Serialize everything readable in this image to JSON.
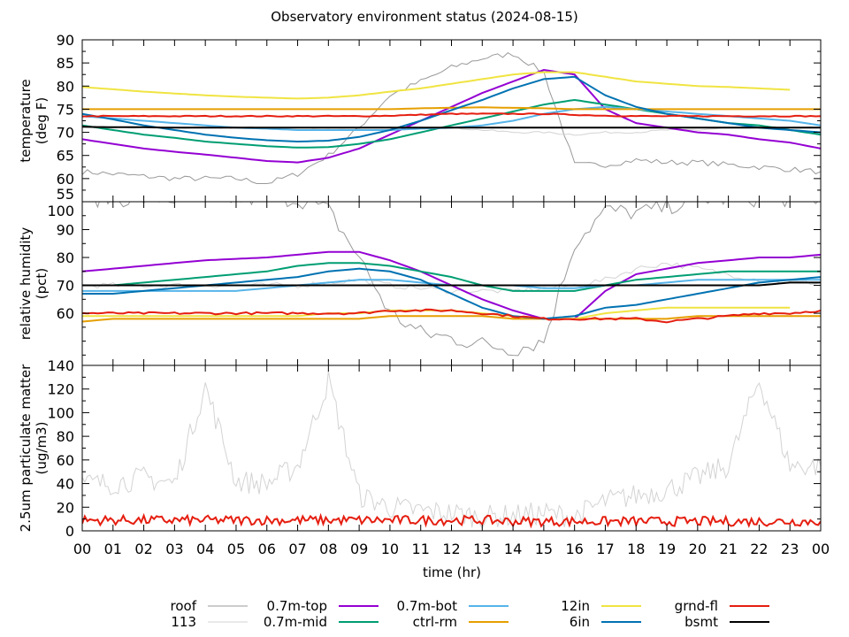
{
  "title": "Observatory environment status (2024-08-15)",
  "xlabel": "time (hr)",
  "x_ticks": [
    "00",
    "01",
    "02",
    "03",
    "04",
    "05",
    "06",
    "07",
    "08",
    "09",
    "10",
    "11",
    "12",
    "13",
    "14",
    "15",
    "16",
    "17",
    "18",
    "19",
    "20",
    "21",
    "22",
    "23",
    "00"
  ],
  "colors": {
    "roof": "#999999",
    "113": "#d3d3d3",
    "0.7m-top": "#9400d3",
    "0.7m-mid": "#009e73",
    "0.7m-bot": "#56b4e9",
    "ctrl-rm": "#e69f00",
    "12in": "#f0e442",
    "6in": "#0072b2",
    "grnd-fl": "#e51e10",
    "bsmt": "#000000"
  },
  "legend": [
    [
      "roof",
      "113"
    ],
    [
      "0.7m-top",
      "0.7m-mid"
    ],
    [
      "0.7m-bot",
      "ctrl-rm"
    ],
    [
      "12in",
      "6in"
    ],
    [
      "grnd-fl",
      "bsmt"
    ]
  ],
  "chart_data": [
    {
      "type": "line",
      "ylabel": [
        "temperature",
        "(deg F)"
      ],
      "ylim": [
        55,
        90
      ],
      "y_ticks": [
        55,
        60,
        65,
        70,
        75,
        80,
        85,
        90
      ],
      "y_tick_step_minor": 2.5,
      "x": "hourly 0-24",
      "series": [
        {
          "name": "roof",
          "values": [
            61.5,
            61,
            60.5,
            60,
            60,
            60,
            59,
            61,
            65,
            71,
            78,
            81,
            84,
            86,
            87,
            83,
            63,
            63,
            64,
            63.5,
            63.5,
            63,
            62.5,
            62,
            61.5
          ]
        },
        {
          "name": "113",
          "values": [
            71,
            71,
            71,
            71,
            71,
            71,
            71,
            71,
            71,
            71,
            71,
            71,
            71,
            70.5,
            70,
            70,
            69.5,
            70,
            70,
            70.5,
            70.5,
            71,
            71,
            71,
            71
          ]
        },
        {
          "name": "0.7m-top",
          "values": [
            68.5,
            67.5,
            66.5,
            65.8,
            65.2,
            64.5,
            63.8,
            63.5,
            64.5,
            66.5,
            69.5,
            72.5,
            75.5,
            78.5,
            81,
            83.5,
            82.5,
            75,
            72,
            71,
            70,
            69.5,
            68.5,
            67.8,
            66.5
          ]
        },
        {
          "name": "0.7m-mid",
          "values": [
            71.5,
            70.5,
            69.5,
            68.8,
            68,
            67.5,
            67,
            66.7,
            66.8,
            67.5,
            68.5,
            70,
            71.5,
            73,
            74.5,
            76,
            77,
            76,
            75,
            74,
            73,
            72,
            71.5,
            70.5,
            69.5
          ]
        },
        {
          "name": "0.7m-bot",
          "values": [
            73.5,
            73,
            72.5,
            72,
            71.5,
            71,
            70.8,
            70.5,
            70.5,
            70.5,
            70.5,
            70.8,
            71,
            71.5,
            72.5,
            74,
            75,
            75.5,
            75,
            74.5,
            74,
            73.5,
            73,
            72.5,
            71.5
          ]
        },
        {
          "name": "ctrl-rm",
          "values": [
            75,
            75,
            75,
            75,
            75,
            75,
            75,
            75,
            75,
            75,
            75,
            75.2,
            75.3,
            75.4,
            75.3,
            75.2,
            75,
            75,
            75,
            75,
            75,
            75,
            75,
            75,
            75
          ]
        },
        {
          "name": "12in",
          "values": [
            79.8,
            79.3,
            78.8,
            78.4,
            78,
            77.7,
            77.5,
            77.3,
            77.5,
            78,
            78.8,
            79.5,
            80.5,
            81.5,
            82.5,
            83,
            83,
            82,
            81,
            80.5,
            80,
            79.8,
            79.5,
            79.2,
            null
          ]
        },
        {
          "name": "6in",
          "values": [
            74,
            72.8,
            71.5,
            70.5,
            69.5,
            68.8,
            68.3,
            68,
            68.2,
            69,
            70.5,
            72.5,
            74.8,
            77,
            79.5,
            81.5,
            82,
            78,
            75.5,
            74,
            73,
            72,
            71,
            70.5,
            70
          ]
        },
        {
          "name": "grnd-fl",
          "values": [
            73.5,
            73.5,
            73.5,
            73.5,
            73.5,
            73.5,
            73.5,
            73.5,
            73.5,
            73.5,
            73.6,
            73.8,
            74,
            74,
            74,
            74,
            73.8,
            73.6,
            73.5,
            73.5,
            73.5,
            73.5,
            73.5,
            73.5,
            73.5
          ]
        },
        {
          "name": "bsmt",
          "values": [
            71.2,
            71.1,
            71.1,
            71,
            71,
            71,
            71,
            71,
            71,
            71,
            71,
            71,
            71,
            71,
            71,
            71,
            71,
            71,
            71,
            71,
            71,
            71,
            71,
            71,
            71
          ]
        }
      ]
    },
    {
      "type": "line",
      "ylabel": [
        "relative humidity",
        "(pct)"
      ],
      "ylim": [
        41.3,
        100
      ],
      "y_ticks": [
        60,
        70,
        80,
        90,
        100
      ],
      "y_tick_step_minor": 5,
      "x": "hourly 0-24",
      "series": [
        {
          "name": "roof",
          "values": [
            101,
            101,
            101,
            101,
            101,
            101,
            101,
            101,
            97,
            80,
            60,
            53,
            51,
            49,
            47,
            50,
            85,
            97,
            96,
            98,
            101,
            101,
            101,
            101,
            101
          ]
        },
        {
          "name": "113",
          "values": [
            70,
            70,
            70,
            70,
            70,
            70,
            70,
            70,
            71,
            72,
            70,
            69,
            68,
            68,
            68,
            69,
            70,
            72,
            76,
            78,
            76,
            74,
            72,
            71,
            71
          ]
        },
        {
          "name": "0.7m-top",
          "values": [
            75,
            76,
            77,
            78,
            79,
            79.5,
            80,
            81,
            82,
            82,
            79,
            75,
            70,
            65,
            61,
            58,
            58,
            68,
            74,
            76,
            78,
            79,
            80,
            80,
            81
          ]
        },
        {
          "name": "0.7m-mid",
          "values": [
            70,
            70,
            71,
            72,
            73,
            74,
            75,
            77,
            78,
            78,
            77,
            75,
            73,
            70,
            68,
            68,
            68,
            70,
            72,
            73,
            74,
            75,
            75,
            75,
            75
          ]
        },
        {
          "name": "0.7m-bot",
          "values": [
            68,
            68,
            68,
            68,
            68,
            68,
            69,
            70,
            71,
            72,
            72,
            71,
            70,
            70,
            70,
            69,
            69,
            70,
            70,
            71,
            72,
            72,
            72,
            72,
            72
          ]
        },
        {
          "name": "ctrl-rm",
          "values": [
            57,
            58,
            58,
            58,
            58,
            58,
            58,
            58,
            58,
            58,
            59,
            59,
            59,
            59,
            58,
            58,
            58,
            58,
            58,
            58,
            59,
            59,
            59,
            59,
            59
          ]
        },
        {
          "name": "12in",
          "values": [
            59,
            59,
            59,
            59,
            59,
            59,
            59,
            59,
            60,
            60,
            61,
            61,
            61,
            60,
            59,
            58,
            58,
            60,
            61,
            62,
            62,
            62,
            62,
            62,
            null
          ]
        },
        {
          "name": "6in",
          "values": [
            67,
            67,
            68,
            69,
            70,
            71,
            72,
            73,
            75,
            76,
            75,
            72,
            67,
            62,
            59,
            58,
            59,
            62,
            63,
            65,
            67,
            69,
            71,
            72,
            73
          ]
        },
        {
          "name": "grnd-fl",
          "values": [
            60,
            60,
            60,
            60,
            60,
            60,
            60,
            60,
            60,
            60,
            61,
            61,
            61,
            60,
            59,
            58,
            58,
            58,
            58,
            57,
            58,
            59,
            60,
            60,
            61
          ]
        },
        {
          "name": "bsmt",
          "values": [
            70,
            70,
            70,
            70,
            70,
            70,
            70,
            70,
            70,
            70,
            70,
            70,
            70,
            70,
            70,
            70,
            70,
            70,
            70,
            70,
            70,
            70,
            70,
            71,
            71
          ]
        }
      ]
    },
    {
      "type": "line",
      "ylabel": [
        "2.5um particulate matter",
        "(ug/m3)"
      ],
      "ylim": [
        0,
        140
      ],
      "y_ticks": [
        0,
        20,
        40,
        60,
        80,
        100,
        120,
        140
      ],
      "y_tick_step_minor": 10,
      "x": "hourly 0-24",
      "series": [
        {
          "name": "113",
          "values": [
            40,
            40,
            45,
            40,
            122,
            42,
            40,
            55,
            127,
            30,
            20,
            17,
            15,
            12,
            13,
            15,
            12,
            25,
            30,
            35,
            45,
            55,
            128,
            55,
            55
          ]
        },
        {
          "name": "grnd-fl",
          "values": [
            9,
            9,
            9,
            9,
            9,
            9,
            9,
            9,
            9,
            9,
            9,
            9,
            9,
            9,
            8,
            8,
            8,
            8,
            8,
            8,
            8,
            8,
            8,
            8,
            8
          ]
        }
      ]
    }
  ]
}
